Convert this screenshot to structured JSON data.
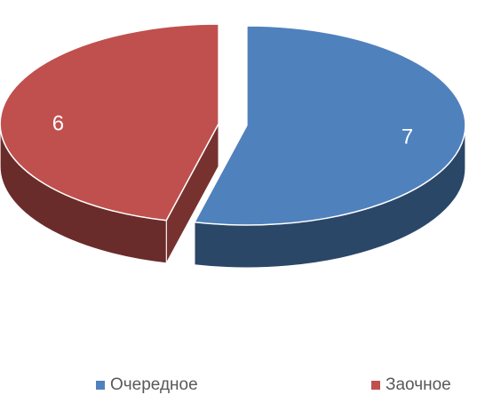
{
  "chart_data": {
    "type": "pie",
    "title": "",
    "categories": [
      "Очередное",
      "Заочное"
    ],
    "values": [
      7,
      6
    ],
    "data_labels": [
      "7",
      "6"
    ],
    "colors": [
      "#4f81bd",
      "#c0504d"
    ],
    "legend_position": "bottom",
    "exploded": true,
    "three_d": true
  },
  "legend": {
    "items": [
      {
        "label": "Очередное",
        "color": "#4f81bd"
      },
      {
        "label": "Заочное",
        "color": "#c0504d"
      }
    ]
  }
}
